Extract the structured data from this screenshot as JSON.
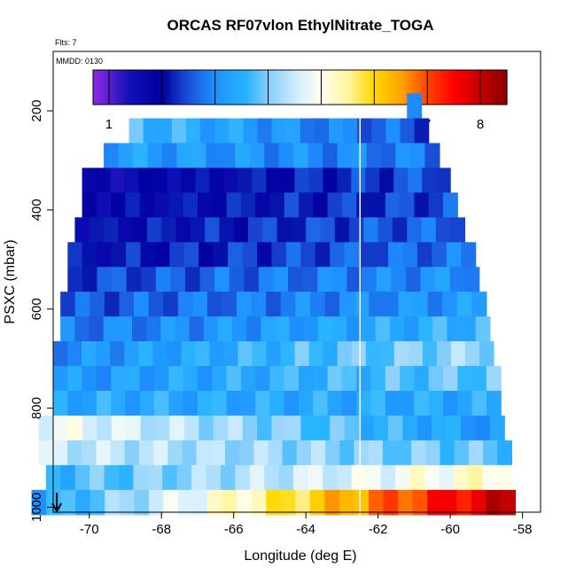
{
  "chart_data": {
    "type": "heatmap",
    "title": "ORCAS RF07vlon EthylNitrate_TOGA",
    "flts_note": "Flts: 7",
    "mmdd_note": "MMDD: 0130",
    "xlabel": "Longitude (deg E)",
    "ylabel": "PSXC (mbar)",
    "xlim": [
      -71.0,
      -57.5
    ],
    "ylim": [
      1010,
      80
    ],
    "x_ticks": [
      -70,
      -68,
      -66,
      -64,
      -62,
      -60,
      -58
    ],
    "y_ticks": [
      200,
      400,
      600,
      800,
      1000
    ],
    "colorbar": {
      "range": [
        0.7,
        8.5
      ],
      "ticks": [
        1,
        2,
        3,
        4,
        5,
        6,
        7,
        8
      ],
      "stops": [
        [
          0.7,
          "#8a2be2"
        ],
        [
          1.0,
          "#5a1fd0"
        ],
        [
          1.4,
          "#1010b8"
        ],
        [
          2.0,
          "#0000a0"
        ],
        [
          2.5,
          "#1a50d8"
        ],
        [
          3.0,
          "#1e90ff"
        ],
        [
          3.6,
          "#2ab4ff"
        ],
        [
          4.0,
          "#87cefa"
        ],
        [
          4.6,
          "#d8f0ff"
        ],
        [
          5.0,
          "#fffff0"
        ],
        [
          5.5,
          "#fff5a0"
        ],
        [
          6.0,
          "#ffd700"
        ],
        [
          6.5,
          "#ffa500"
        ],
        [
          7.0,
          "#ff4500"
        ],
        [
          7.5,
          "#ff0000"
        ],
        [
          8.0,
          "#c40000"
        ],
        [
          8.5,
          "#8b0000"
        ]
      ]
    },
    "divider_longitude": -62.5,
    "rows": [
      {
        "pressure": 190,
        "x0": -61.2,
        "x1": -60.8,
        "v0": 3.6,
        "v1": 2.3
      },
      {
        "pressure": 240,
        "x0": -68.9,
        "x1": -60.6,
        "v0": 3.7,
        "v1": 2.5
      },
      {
        "pressure": 290,
        "x0": -69.6,
        "x1": -60.3,
        "v0": 3.3,
        "v1": 2.8
      },
      {
        "pressure": 340,
        "x0": -70.2,
        "x1": -60.0,
        "v0": 1.5,
        "v1": 2.6
      },
      {
        "pressure": 390,
        "x0": -70.2,
        "x1": -59.8,
        "v0": 1.8,
        "v1": 2.5
      },
      {
        "pressure": 440,
        "x0": -70.4,
        "x1": -59.6,
        "v0": 1.9,
        "v1": 2.7
      },
      {
        "pressure": 490,
        "x0": -70.6,
        "x1": -59.3,
        "v0": 2.0,
        "v1": 2.8
      },
      {
        "pressure": 540,
        "x0": -70.6,
        "x1": -59.2,
        "v0": 2.4,
        "v1": 3.1
      },
      {
        "pressure": 590,
        "x0": -70.8,
        "x1": -59.0,
        "v0": 2.5,
        "v1": 3.2
      },
      {
        "pressure": 640,
        "x0": -70.8,
        "x1": -58.9,
        "v0": 2.8,
        "v1": 3.6
      },
      {
        "pressure": 690,
        "x0": -71.0,
        "x1": -58.8,
        "v0": 3.0,
        "v1": 4.2
      },
      {
        "pressure": 740,
        "x0": -71.0,
        "x1": -58.6,
        "v0": 3.1,
        "v1": 3.9
      },
      {
        "pressure": 790,
        "x0": -71.0,
        "x1": -58.6,
        "v0": 3.4,
        "v1": 3.4
      },
      {
        "pressure": 840,
        "x0": -71.4,
        "x1": -58.5,
        "v0": 4.9,
        "v1": 3.1
      },
      {
        "pressure": 890,
        "x0": -71.4,
        "x1": -58.3,
        "v0": 4.5,
        "v1": 3.8
      },
      {
        "pressure": 940,
        "x0": -71.2,
        "x1": -58.3,
        "v0": 3.6,
        "v1": 5.3
      },
      {
        "pressure": 990,
        "x0": -71.6,
        "x1": -58.2,
        "v0": 3.2,
        "v1": 8.1
      }
    ],
    "arrow_longitude": -70.9
  }
}
